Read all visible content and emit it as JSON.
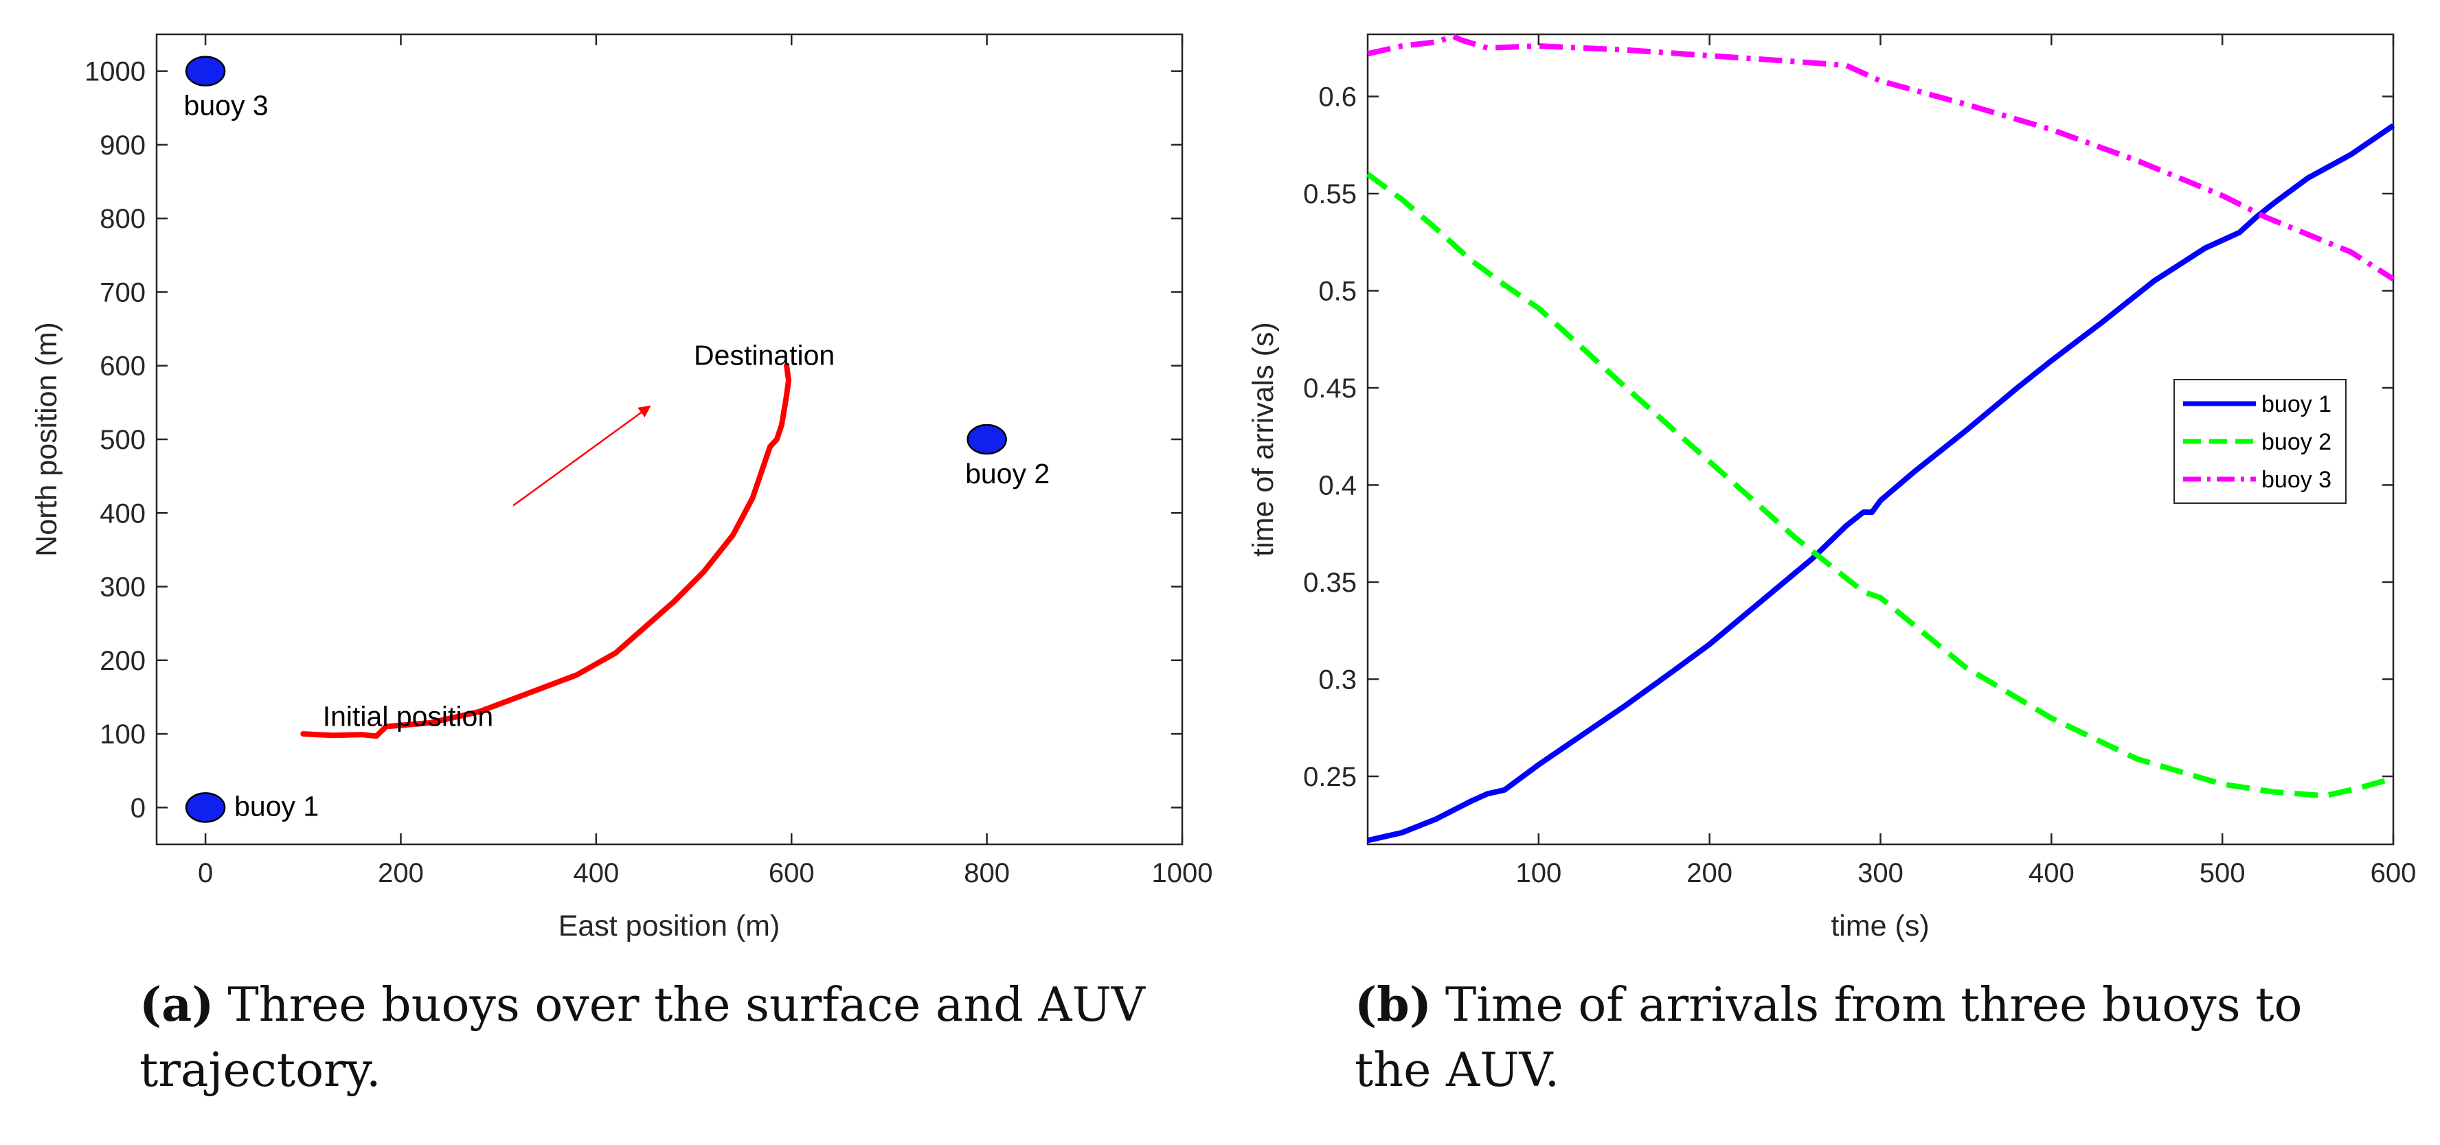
{
  "chart_data": [
    {
      "type": "scatter",
      "xlabel": "East position (m)",
      "ylabel": "North position (m)",
      "xlim": [
        -50,
        1000
      ],
      "ylim": [
        -50,
        1050
      ],
      "xticks": [
        0,
        200,
        400,
        600,
        800,
        1000
      ],
      "yticks": [
        0,
        100,
        200,
        300,
        400,
        500,
        600,
        700,
        800,
        900,
        1000
      ],
      "buoys": [
        {
          "name": "buoy 1",
          "x": 0,
          "y": 0
        },
        {
          "name": "buoy 2",
          "x": 800,
          "y": 500
        },
        {
          "name": "buoy 3",
          "x": 0,
          "y": 1000
        }
      ],
      "trajectory": {
        "color": "#ff0000",
        "x": [
          100,
          130,
          160,
          175,
          185,
          230,
          280,
          330,
          380,
          420,
          450,
          480,
          510,
          540,
          560,
          578,
          585,
          590,
          595,
          597,
          595
        ],
        "y": [
          100,
          98,
          99,
          97,
          110,
          115,
          130,
          155,
          180,
          210,
          245,
          280,
          320,
          370,
          420,
          490,
          500,
          520,
          560,
          580,
          600
        ]
      },
      "arrow": {
        "from": [
          315,
          410
        ],
        "to": [
          455,
          545
        ],
        "color": "#ff0000"
      },
      "annotations": [
        {
          "text": "Initial position",
          "x": 120,
          "y": 125
        },
        {
          "text": "Destination",
          "x": 500,
          "y": 615
        }
      ],
      "caption_label": "(a)",
      "caption_text": "Three buoys over the surface and AUV trajectory."
    },
    {
      "type": "line",
      "xlabel": "time (s)",
      "ylabel": "time of arrivals (s)",
      "xlim": [
        0,
        600
      ],
      "ylim": [
        0.215,
        0.632
      ],
      "xticks": [
        100,
        200,
        300,
        400,
        500,
        600
      ],
      "yticks": [
        0.25,
        0.3,
        0.35,
        0.4,
        0.45,
        0.5,
        0.55,
        0.6
      ],
      "ytick_labels": [
        "0.25",
        "0.3",
        "0.35",
        "0.4",
        "0.45",
        "0.5",
        "0.55",
        "0.6"
      ],
      "series": [
        {
          "name": "buoy 1",
          "color": "#0000ff",
          "style": "solid",
          "x": [
            0,
            20,
            40,
            60,
            70,
            80,
            100,
            120,
            150,
            180,
            200,
            230,
            260,
            280,
            290,
            295,
            300,
            320,
            350,
            380,
            400,
            430,
            460,
            490,
            510,
            520,
            530,
            550,
            575,
            600
          ],
          "y": [
            0.217,
            0.221,
            0.228,
            0.237,
            0.241,
            0.243,
            0.256,
            0.268,
            0.286,
            0.305,
            0.318,
            0.34,
            0.362,
            0.379,
            0.386,
            0.386,
            0.392,
            0.407,
            0.428,
            0.45,
            0.464,
            0.484,
            0.505,
            0.522,
            0.53,
            0.538,
            0.545,
            0.558,
            0.57,
            0.585
          ]
        },
        {
          "name": "buoy 2",
          "color": "#00ff00",
          "style": "dashed",
          "x": [
            0,
            20,
            40,
            60,
            80,
            100,
            150,
            200,
            250,
            290,
            300,
            350,
            400,
            450,
            500,
            530,
            560,
            580,
            600
          ],
          "y": [
            0.56,
            0.547,
            0.532,
            0.516,
            0.503,
            0.491,
            0.451,
            0.412,
            0.373,
            0.345,
            0.342,
            0.306,
            0.28,
            0.259,
            0.246,
            0.242,
            0.24,
            0.244,
            0.249
          ]
        },
        {
          "name": "buoy 3",
          "color": "#ff00ff",
          "style": "dashdot",
          "x": [
            0,
            20,
            40,
            50,
            55,
            70,
            100,
            150,
            200,
            250,
            280,
            295,
            300,
            350,
            400,
            450,
            500,
            525,
            550,
            575,
            600
          ],
          "y": [
            0.622,
            0.626,
            0.628,
            0.631,
            0.629,
            0.625,
            0.626,
            0.624,
            0.621,
            0.618,
            0.616,
            0.61,
            0.608,
            0.596,
            0.583,
            0.567,
            0.549,
            0.538,
            0.529,
            0.52,
            0.506
          ]
        }
      ],
      "legend_position": "right-center",
      "caption_label": "(b)",
      "caption_text": "Time of arrivals from three buoys to the AUV."
    }
  ],
  "captions": {
    "a_line1": "Three buoys over the surface and AUV",
    "a_line2": "trajectory.",
    "b_line1": "Time of arrivals from three buoys to",
    "b_line2": "the AUV."
  }
}
